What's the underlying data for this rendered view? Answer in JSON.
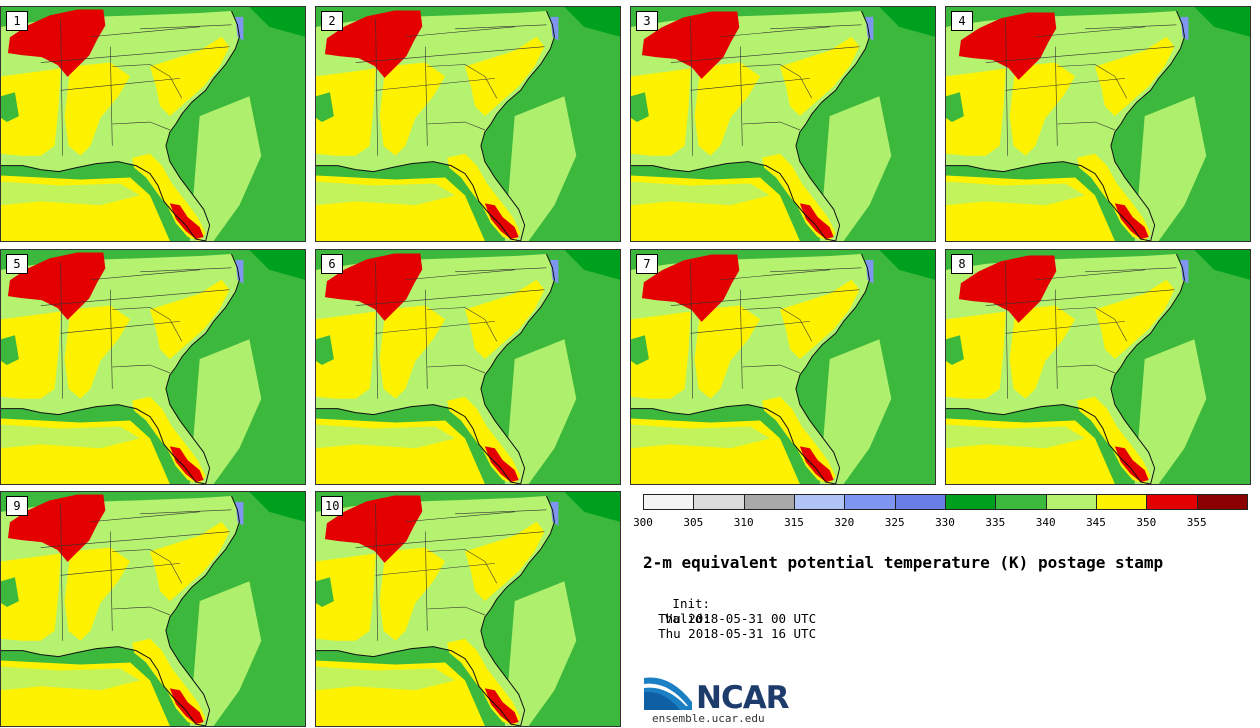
{
  "figure": {
    "title": "2-m equivalent potential temperature (K) postage stamp",
    "init_label": "Init:",
    "init_time": "Thu 2018-05-31 00 UTC",
    "valid_label": "Valid:",
    "valid_time": "Thu 2018-05-31 16 UTC"
  },
  "members": [
    {
      "label": "1"
    },
    {
      "label": "2"
    },
    {
      "label": "3"
    },
    {
      "label": "4"
    },
    {
      "label": "5"
    },
    {
      "label": "6"
    },
    {
      "label": "7"
    },
    {
      "label": "8"
    },
    {
      "label": "9"
    },
    {
      "label": "10"
    }
  ],
  "colorbar": {
    "ticks": [
      "300",
      "305",
      "310",
      "315",
      "320",
      "325",
      "330",
      "335",
      "340",
      "345",
      "350",
      "355"
    ],
    "colors": [
      "#f4f4f4",
      "#dcdcdc",
      "#a9a9a9",
      "#b0c4f8",
      "#7f96f0",
      "#6a7fe6",
      "#00a01f",
      "#3cb83c",
      "#b4f270",
      "#fff200",
      "#e40000",
      "#8b0000"
    ]
  },
  "map_colors": {
    "ocean_deep": "#3cb83c",
    "ocean_dark": "#00a01f",
    "land_green": "#b4f270",
    "yellow": "#fff200",
    "red": "#e40000",
    "water_blue": "#7f96f0"
  },
  "logo": {
    "name": "NCAR",
    "url": "ensemble.ucar.edu"
  }
}
